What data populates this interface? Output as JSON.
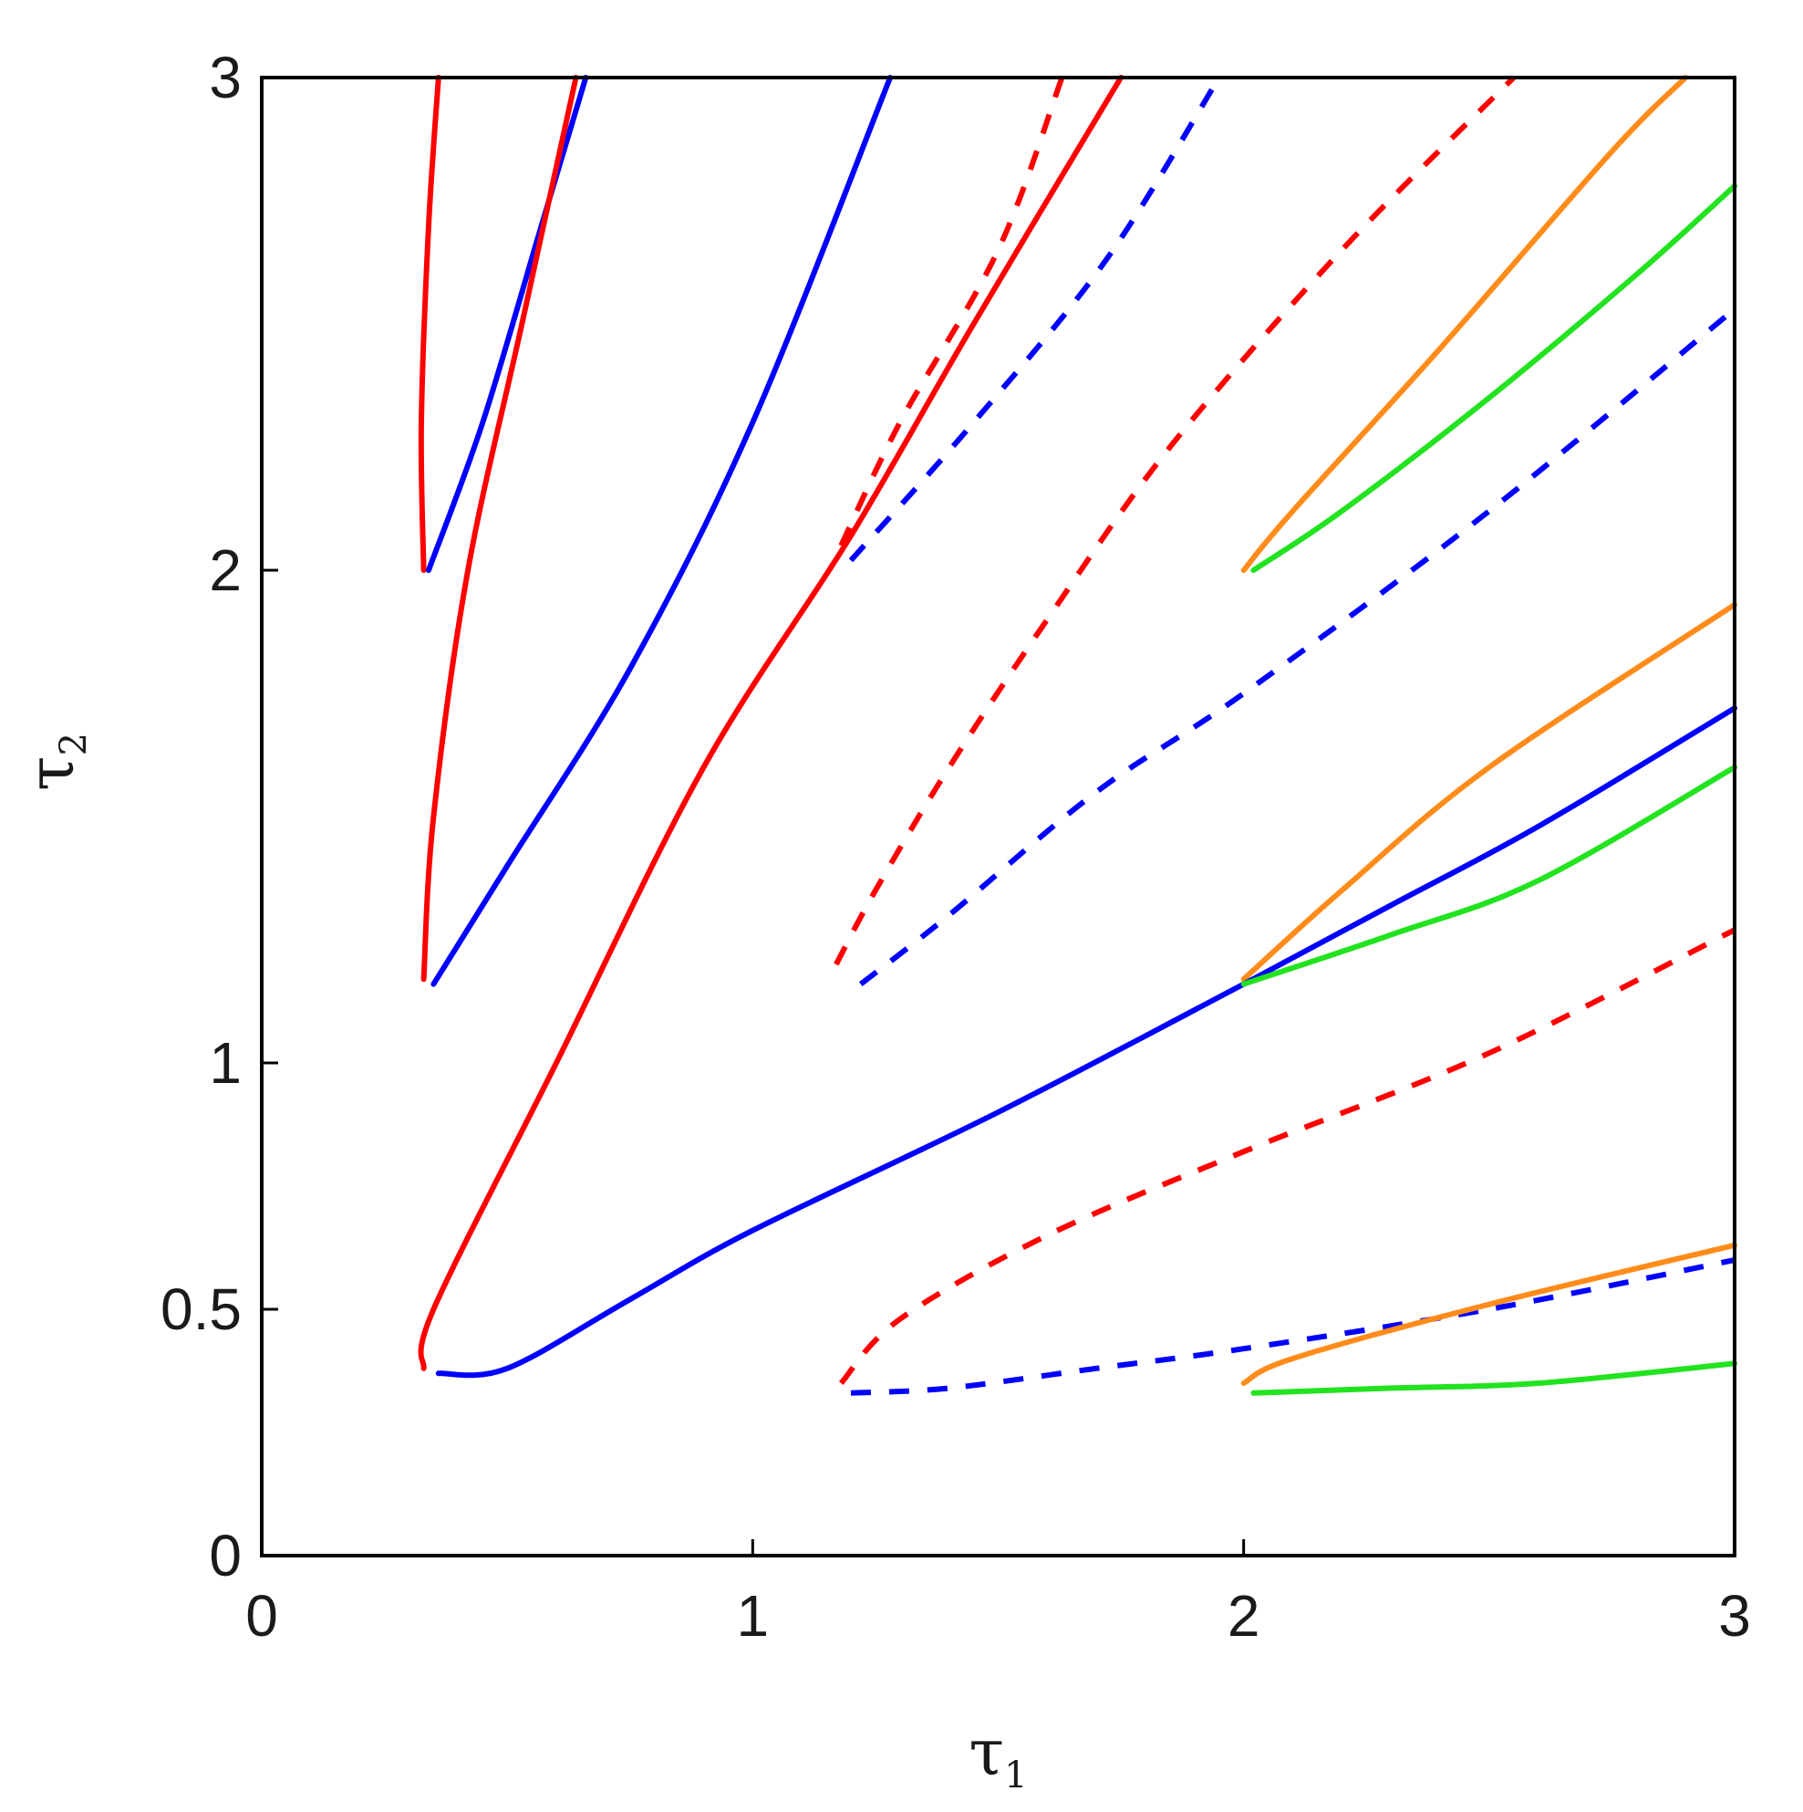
{
  "chart_data": {
    "type": "line",
    "title": "",
    "xlabel": "τ",
    "xlabel_subscript": "1",
    "ylabel": "τ",
    "ylabel_subscript": "2",
    "xlim": [
      0,
      3
    ],
    "ylim": [
      0,
      3
    ],
    "x_ticks": [
      0,
      1,
      2,
      3
    ],
    "x_tick_labels": [
      "0",
      "1",
      "2",
      "3"
    ],
    "y_ticks": [
      0,
      0.5,
      1,
      2,
      3
    ],
    "y_tick_labels": [
      "0",
      "0.5",
      "1",
      "2",
      "3"
    ],
    "grid": false,
    "legend": "none",
    "colors": {
      "red": "#ff0000",
      "blue": "#0000ff",
      "orange": "#ff8c1a",
      "green": "#22e31f",
      "axis": "#000000"
    },
    "series": [
      {
        "color": "red",
        "style": "solid",
        "points": [
          [
            0.33,
            2.0
          ],
          [
            0.325,
            2.3
          ],
          [
            0.34,
            2.7
          ],
          [
            0.36,
            3.0
          ]
        ]
      },
      {
        "color": "blue",
        "style": "solid",
        "points": [
          [
            0.34,
            2.0
          ],
          [
            0.45,
            2.3
          ],
          [
            0.57,
            2.7
          ],
          [
            0.66,
            3.0
          ]
        ]
      },
      {
        "color": "red",
        "style": "solid",
        "points": [
          [
            0.33,
            1.17
          ],
          [
            0.35,
            1.5
          ],
          [
            0.42,
            2.0
          ],
          [
            0.53,
            2.5
          ],
          [
            0.64,
            3.0
          ]
        ]
      },
      {
        "color": "blue",
        "style": "solid",
        "points": [
          [
            0.35,
            1.16
          ],
          [
            0.5,
            1.4
          ],
          [
            0.75,
            1.8
          ],
          [
            1.0,
            2.3
          ],
          [
            1.28,
            3.0
          ]
        ]
      },
      {
        "color": "red",
        "style": "solid",
        "points": [
          [
            0.33,
            0.38
          ],
          [
            0.35,
            0.5
          ],
          [
            0.6,
            1.0
          ],
          [
            0.9,
            1.6
          ],
          [
            1.2,
            2.07
          ],
          [
            1.45,
            2.5
          ],
          [
            1.75,
            3.0
          ]
        ]
      },
      {
        "color": "blue",
        "style": "solid",
        "points": [
          [
            0.36,
            0.37
          ],
          [
            0.5,
            0.38
          ],
          [
            0.75,
            0.52
          ],
          [
            1.0,
            0.66
          ],
          [
            1.5,
            0.9
          ],
          [
            2.0,
            1.16
          ]
        ]
      },
      {
        "color": "red",
        "style": "dashed",
        "points": [
          [
            1.17,
            1.2
          ],
          [
            1.25,
            1.35
          ],
          [
            1.4,
            1.6
          ],
          [
            1.6,
            1.9
          ],
          [
            1.85,
            2.25
          ],
          [
            2.2,
            2.65
          ],
          [
            2.55,
            3.0
          ]
        ]
      },
      {
        "color": "blue",
        "style": "dashed",
        "points": [
          [
            1.22,
            1.16
          ],
          [
            1.4,
            1.3
          ],
          [
            1.7,
            1.55
          ],
          [
            2.0,
            1.75
          ],
          [
            2.5,
            2.12
          ],
          [
            3.0,
            2.53
          ]
        ]
      },
      {
        "color": "red",
        "style": "dashed",
        "points": [
          [
            1.18,
            2.05
          ],
          [
            1.3,
            2.3
          ],
          [
            1.5,
            2.65
          ],
          [
            1.63,
            3.0
          ]
        ]
      },
      {
        "color": "blue",
        "style": "dashed",
        "points": [
          [
            1.2,
            2.02
          ],
          [
            1.45,
            2.3
          ],
          [
            1.72,
            2.63
          ],
          [
            1.95,
            3.0
          ]
        ]
      },
      {
        "color": "red",
        "style": "dashed",
        "points": [
          [
            1.18,
            0.35
          ],
          [
            1.3,
            0.48
          ],
          [
            1.6,
            0.65
          ],
          [
            2.0,
            0.82
          ],
          [
            2.5,
            1.02
          ],
          [
            3.0,
            1.27
          ]
        ]
      },
      {
        "color": "blue",
        "style": "dashed",
        "points": [
          [
            1.2,
            0.33
          ],
          [
            1.4,
            0.34
          ],
          [
            1.7,
            0.38
          ],
          [
            2.0,
            0.42
          ],
          [
            2.5,
            0.5
          ],
          [
            3.0,
            0.6
          ]
        ]
      },
      {
        "color": "orange",
        "style": "solid",
        "points": [
          [
            2.0,
            2.0
          ],
          [
            2.1,
            2.12
          ],
          [
            2.4,
            2.45
          ],
          [
            2.75,
            2.85
          ],
          [
            2.9,
            3.0
          ]
        ]
      },
      {
        "color": "green",
        "style": "solid",
        "points": [
          [
            2.02,
            2.0
          ],
          [
            2.2,
            2.12
          ],
          [
            2.5,
            2.35
          ],
          [
            2.8,
            2.6
          ],
          [
            3.0,
            2.78
          ]
        ]
      },
      {
        "color": "orange",
        "style": "solid",
        "points": [
          [
            2.0,
            1.17
          ],
          [
            2.2,
            1.35
          ],
          [
            2.5,
            1.6
          ],
          [
            3.0,
            1.93
          ]
        ]
      },
      {
        "color": "blue",
        "style": "solid",
        "points": [
          [
            2.0,
            1.16
          ],
          [
            2.3,
            1.32
          ],
          [
            2.6,
            1.48
          ],
          [
            3.0,
            1.72
          ]
        ]
      },
      {
        "color": "green",
        "style": "solid",
        "points": [
          [
            2.0,
            1.16
          ],
          [
            2.3,
            1.26
          ],
          [
            2.6,
            1.37
          ],
          [
            3.0,
            1.6
          ]
        ]
      },
      {
        "color": "orange",
        "style": "solid",
        "points": [
          [
            2.0,
            0.35
          ],
          [
            2.1,
            0.4
          ],
          [
            2.5,
            0.51
          ],
          [
            3.0,
            0.63
          ]
        ]
      },
      {
        "color": "green",
        "style": "solid",
        "points": [
          [
            2.02,
            0.33
          ],
          [
            2.3,
            0.34
          ],
          [
            2.6,
            0.35
          ],
          [
            3.0,
            0.39
          ]
        ]
      }
    ]
  }
}
